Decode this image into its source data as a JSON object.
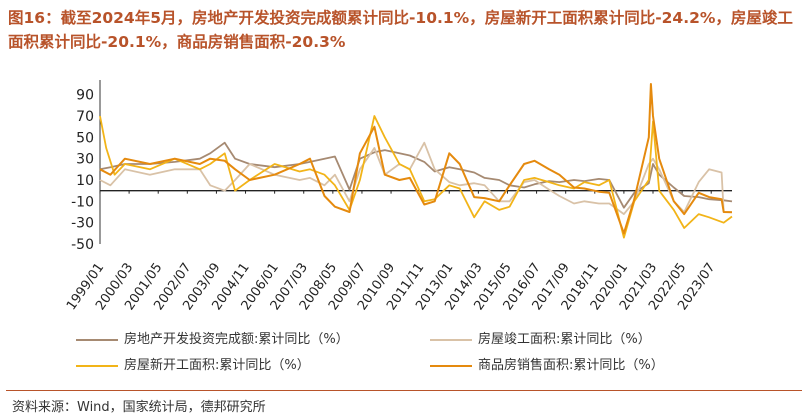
{
  "chart_title": "图16：截至2024年5月，房地产开发投资完成额累计同比-10.1%，房屋新开工面积累计同比-24.2%，房屋竣工面积累计同比-20.1%，商品房销售面积-20.3%",
  "source_note": "资料来源：Wind，国家统计局，德邦研究所",
  "chart_data": {
    "type": "line",
    "title": "图16：截至2024年5月，房地产开发投资完成额累计同比-10.1%，房屋新开工面积累计同比-24.2%，房屋竣工面积累计同比-20.1%，商品房销售面积-20.3%",
    "xlabel": "",
    "ylabel": "",
    "ylim": [
      -50,
      100
    ],
    "yticks": [
      -50,
      -30,
      -10,
      10,
      30,
      50,
      70,
      90
    ],
    "xlim": [
      "1999/01",
      "2024/05"
    ],
    "x_ticks": [
      "1999/01",
      "2000/03",
      "2001/05",
      "2002/07",
      "2003/09",
      "2004/11",
      "2006/01",
      "2007/03",
      "2008/05",
      "2009/07",
      "2010/09",
      "2011/11",
      "2013/01",
      "2014/03",
      "2015/05",
      "2016/07",
      "2017/09",
      "2018/11",
      "2020/01",
      "2021/03",
      "2022/05",
      "2023/07"
    ],
    "grid": false,
    "legend_position": "bottom",
    "series": [
      {
        "name": "房地产开发投资完成额:累计同比（%）",
        "color": "#a68a72",
        "points": [
          [
            "1999/01",
            20
          ],
          [
            "1999/06",
            22
          ],
          [
            "2000/01",
            25
          ],
          [
            "2001/01",
            25
          ],
          [
            "2002/01",
            27
          ],
          [
            "2003/01",
            30
          ],
          [
            "2003/06",
            35
          ],
          [
            "2004/01",
            45
          ],
          [
            "2004/06",
            30
          ],
          [
            "2005/01",
            25
          ],
          [
            "2006/01",
            22
          ],
          [
            "2007/01",
            25
          ],
          [
            "2007/06",
            27
          ],
          [
            "2008/01",
            30
          ],
          [
            "2008/06",
            32
          ],
          [
            "2009/01",
            1
          ],
          [
            "2009/06",
            30
          ],
          [
            "2010/01",
            36
          ],
          [
            "2010/06",
            38
          ],
          [
            "2011/01",
            35
          ],
          [
            "2011/06",
            33
          ],
          [
            "2012/01",
            27
          ],
          [
            "2012/06",
            18
          ],
          [
            "2013/01",
            22
          ],
          [
            "2013/06",
            20
          ],
          [
            "2014/01",
            17
          ],
          [
            "2014/06",
            12
          ],
          [
            "2015/01",
            10
          ],
          [
            "2015/06",
            5
          ],
          [
            "2016/01",
            3
          ],
          [
            "2016/06",
            6
          ],
          [
            "2017/01",
            9
          ],
          [
            "2017/06",
            8
          ],
          [
            "2018/01",
            10
          ],
          [
            "2018/06",
            9
          ],
          [
            "2019/01",
            11
          ],
          [
            "2019/06",
            10
          ],
          [
            "2020/01",
            -16
          ],
          [
            "2020/06",
            -2
          ],
          [
            "2021/01",
            7
          ],
          [
            "2021/03",
            25
          ],
          [
            "2021/06",
            15
          ],
          [
            "2022/01",
            3
          ],
          [
            "2022/06",
            -5
          ],
          [
            "2023/01",
            -6
          ],
          [
            "2023/06",
            -8
          ],
          [
            "2024/01",
            -9
          ],
          [
            "2024/05",
            -10.1
          ]
        ]
      },
      {
        "name": "房屋竣工面积:累计同比（%）",
        "color": "#d9c2a7",
        "points": [
          [
            "1999/01",
            10
          ],
          [
            "1999/06",
            5
          ],
          [
            "2000/01",
            20
          ],
          [
            "2001/01",
            15
          ],
          [
            "2002/01",
            20
          ],
          [
            "2003/01",
            20
          ],
          [
            "2003/06",
            5
          ],
          [
            "2004/01",
            0
          ],
          [
            "2004/06",
            10
          ],
          [
            "2005/01",
            25
          ],
          [
            "2006/01",
            15
          ],
          [
            "2007/01",
            10
          ],
          [
            "2007/06",
            12
          ],
          [
            "2008/01",
            5
          ],
          [
            "2008/06",
            15
          ],
          [
            "2009/01",
            -10
          ],
          [
            "2009/06",
            20
          ],
          [
            "2010/01",
            40
          ],
          [
            "2010/06",
            15
          ],
          [
            "2011/01",
            25
          ],
          [
            "2011/06",
            20
          ],
          [
            "2012/01",
            45
          ],
          [
            "2012/06",
            20
          ],
          [
            "2013/01",
            8
          ],
          [
            "2013/06",
            5
          ],
          [
            "2014/01",
            7
          ],
          [
            "2014/06",
            5
          ],
          [
            "2015/01",
            -10
          ],
          [
            "2015/06",
            -10
          ],
          [
            "2016/01",
            8
          ],
          [
            "2016/06",
            10
          ],
          [
            "2017/01",
            1
          ],
          [
            "2017/06",
            -5
          ],
          [
            "2018/01",
            -12
          ],
          [
            "2018/06",
            -10
          ],
          [
            "2019/01",
            -12
          ],
          [
            "2019/06",
            -12
          ],
          [
            "2020/01",
            -22
          ],
          [
            "2020/06",
            -10
          ],
          [
            "2021/01",
            25
          ],
          [
            "2021/03",
            30
          ],
          [
            "2021/06",
            20
          ],
          [
            "2022/01",
            -10
          ],
          [
            "2022/06",
            -20
          ],
          [
            "2023/01",
            8
          ],
          [
            "2023/06",
            20
          ],
          [
            "2023/12",
            17
          ],
          [
            "2024/01",
            -20
          ],
          [
            "2024/05",
            -20.1
          ]
        ]
      },
      {
        "name": "房屋新开工面积:累计同比（%）",
        "color": "#f2b418",
        "points": [
          [
            "1999/01",
            70
          ],
          [
            "1999/04",
            40
          ],
          [
            "1999/08",
            15
          ],
          [
            "2000/01",
            25
          ],
          [
            "2001/01",
            20
          ],
          [
            "2002/01",
            30
          ],
          [
            "2003/01",
            20
          ],
          [
            "2003/06",
            25
          ],
          [
            "2004/01",
            35
          ],
          [
            "2004/06",
            0
          ],
          [
            "2005/01",
            10
          ],
          [
            "2006/01",
            25
          ],
          [
            "2007/01",
            18
          ],
          [
            "2007/06",
            20
          ],
          [
            "2008/01",
            15
          ],
          [
            "2008/06",
            5
          ],
          [
            "2009/01",
            -18
          ],
          [
            "2009/06",
            10
          ],
          [
            "2010/01",
            70
          ],
          [
            "2010/06",
            50
          ],
          [
            "2011/01",
            25
          ],
          [
            "2011/06",
            20
          ],
          [
            "2012/01",
            -10
          ],
          [
            "2012/06",
            -8
          ],
          [
            "2013/01",
            5
          ],
          [
            "2013/06",
            2
          ],
          [
            "2014/01",
            -25
          ],
          [
            "2014/06",
            -10
          ],
          [
            "2015/01",
            -18
          ],
          [
            "2015/06",
            -15
          ],
          [
            "2016/01",
            10
          ],
          [
            "2016/06",
            12
          ],
          [
            "2017/01",
            8
          ],
          [
            "2017/06",
            5
          ],
          [
            "2018/01",
            2
          ],
          [
            "2018/06",
            8
          ],
          [
            "2019/01",
            5
          ],
          [
            "2019/06",
            10
          ],
          [
            "2020/01",
            -44
          ],
          [
            "2020/06",
            -10
          ],
          [
            "2021/01",
            10
          ],
          [
            "2021/03",
            65
          ],
          [
            "2021/06",
            0
          ],
          [
            "2022/01",
            -18
          ],
          [
            "2022/06",
            -35
          ],
          [
            "2023/01",
            -22
          ],
          [
            "2023/06",
            -25
          ],
          [
            "2024/01",
            -30
          ],
          [
            "2024/05",
            -24.2
          ]
        ]
      },
      {
        "name": "商品房销售面积:累计同比（%）",
        "color": "#e58a0e",
        "points": [
          [
            "1999/01",
            20
          ],
          [
            "1999/06",
            15
          ],
          [
            "2000/01",
            30
          ],
          [
            "2001/01",
            25
          ],
          [
            "2002/01",
            30
          ],
          [
            "2003/01",
            25
          ],
          [
            "2003/06",
            30
          ],
          [
            "2004/01",
            28
          ],
          [
            "2004/06",
            20
          ],
          [
            "2005/01",
            10
          ],
          [
            "2006/01",
            15
          ],
          [
            "2007/01",
            25
          ],
          [
            "2007/06",
            30
          ],
          [
            "2008/01",
            -5
          ],
          [
            "2008/06",
            -15
          ],
          [
            "2009/01",
            -20
          ],
          [
            "2009/06",
            35
          ],
          [
            "2010/01",
            60
          ],
          [
            "2010/06",
            15
          ],
          [
            "2011/01",
            10
          ],
          [
            "2011/06",
            12
          ],
          [
            "2012/01",
            -13
          ],
          [
            "2012/06",
            -10
          ],
          [
            "2013/01",
            35
          ],
          [
            "2013/06",
            25
          ],
          [
            "2014/01",
            -6
          ],
          [
            "2014/06",
            -7
          ],
          [
            "2015/01",
            -10
          ],
          [
            "2015/06",
            5
          ],
          [
            "2016/01",
            25
          ],
          [
            "2016/06",
            28
          ],
          [
            "2017/01",
            20
          ],
          [
            "2017/06",
            15
          ],
          [
            "2018/01",
            3
          ],
          [
            "2018/06",
            2
          ],
          [
            "2019/01",
            -1
          ],
          [
            "2019/06",
            -2
          ],
          [
            "2020/01",
            -40
          ],
          [
            "2020/06",
            -8
          ],
          [
            "2021/01",
            50
          ],
          [
            "2021/02",
            100
          ],
          [
            "2021/03",
            70
          ],
          [
            "2021/06",
            30
          ],
          [
            "2022/01",
            -10
          ],
          [
            "2022/06",
            -22
          ],
          [
            "2023/01",
            -2
          ],
          [
            "2023/06",
            -6
          ],
          [
            "2023/12",
            -8
          ],
          [
            "2024/01",
            -20
          ],
          [
            "2024/05",
            -20.3
          ]
        ]
      }
    ]
  }
}
